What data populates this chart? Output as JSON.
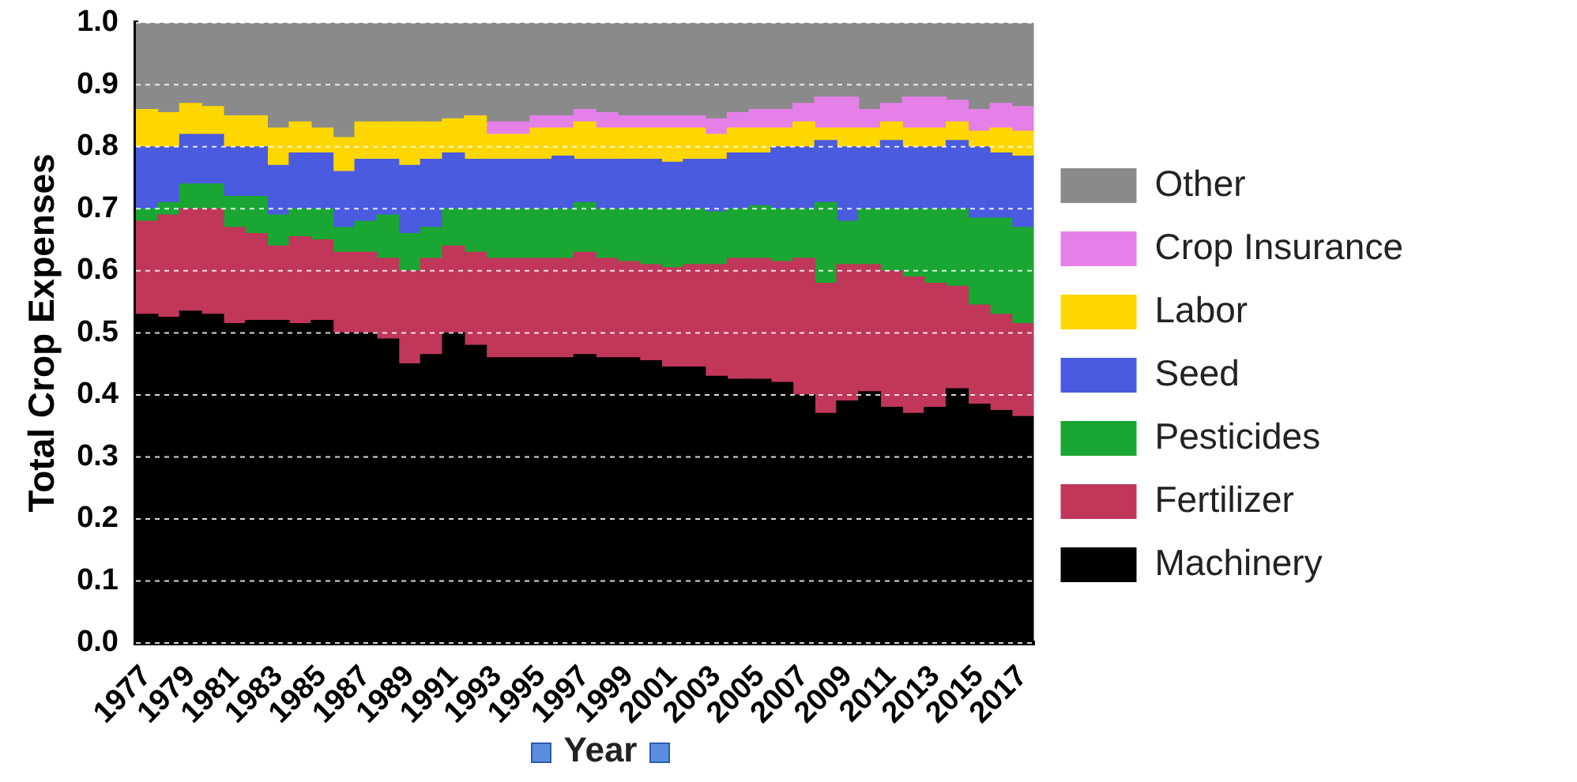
{
  "chart_data": {
    "type": "bar",
    "stacked": true,
    "ylabel": "Total Crop Expenses",
    "xlabel": "Year",
    "categories": [
      "1977",
      null,
      "1979",
      null,
      "1981",
      null,
      "1983",
      null,
      "1985",
      null,
      "1987",
      null,
      "1989",
      null,
      "1991",
      null,
      "1993",
      null,
      "1995",
      null,
      "1997",
      null,
      "1999",
      null,
      "2001",
      null,
      "2003",
      null,
      "2005",
      null,
      "2007",
      null,
      "2009",
      null,
      "2011",
      null,
      "2013",
      null,
      "2015",
      null,
      "2017"
    ],
    "ylim": [
      0,
      1
    ],
    "yticks": [
      {
        "value": 0,
        "label": "0.0"
      },
      {
        "value": 0.1,
        "label": "0.1"
      },
      {
        "value": 0.2,
        "label": "0.2"
      },
      {
        "value": 0.3,
        "label": "0.3"
      },
      {
        "value": 0.4,
        "label": "0.4"
      },
      {
        "value": 0.5,
        "label": "0.5"
      },
      {
        "value": 0.6,
        "label": "0.6"
      },
      {
        "value": 0.7,
        "label": "0.7"
      },
      {
        "value": 0.8,
        "label": "0.8"
      },
      {
        "value": 0.9,
        "label": "0.9"
      },
      {
        "value": 1,
        "label": "1.0"
      }
    ],
    "grid": "y",
    "legend": "right",
    "series": [
      {
        "name": "Machinery",
        "color": "#000000",
        "values": [
          0.53,
          0.525,
          0.535,
          0.53,
          0.515,
          0.52,
          0.52,
          0.515,
          0.52,
          0.5,
          0.5,
          0.49,
          0.45,
          0.465,
          0.5,
          0.48,
          0.46,
          0.46,
          0.46,
          0.46,
          0.465,
          0.46,
          0.46,
          0.455,
          0.445,
          0.445,
          0.43,
          0.425,
          0.425,
          0.42,
          0.4,
          0.37,
          0.39,
          0.405,
          0.38,
          0.37,
          0.38,
          0.41,
          0.385,
          0.375,
          0.365
        ]
      },
      {
        "name": "Fertilizer",
        "color": "#c0375a",
        "values": [
          0.15,
          0.165,
          0.165,
          0.17,
          0.155,
          0.14,
          0.12,
          0.14,
          0.13,
          0.13,
          0.13,
          0.13,
          0.15,
          0.155,
          0.14,
          0.15,
          0.16,
          0.16,
          0.16,
          0.16,
          0.165,
          0.16,
          0.155,
          0.155,
          0.16,
          0.165,
          0.18,
          0.195,
          0.195,
          0.195,
          0.22,
          0.21,
          0.22,
          0.205,
          0.22,
          0.22,
          0.2,
          0.165,
          0.16,
          0.155,
          0.15
        ]
      },
      {
        "name": "Pesticides",
        "color": "#1aa632",
        "values": [
          0.02,
          0.02,
          0.04,
          0.04,
          0.05,
          0.06,
          0.05,
          0.045,
          0.05,
          0.04,
          0.05,
          0.07,
          0.06,
          0.05,
          0.06,
          0.07,
          0.08,
          0.08,
          0.08,
          0.08,
          0.08,
          0.08,
          0.085,
          0.09,
          0.095,
          0.09,
          0.085,
          0.08,
          0.085,
          0.085,
          0.08,
          0.13,
          0.07,
          0.09,
          0.1,
          0.11,
          0.12,
          0.125,
          0.14,
          0.155,
          0.155
        ]
      },
      {
        "name": "Seed",
        "color": "#4a5be0",
        "values": [
          0.1,
          0.09,
          0.08,
          0.08,
          0.08,
          0.08,
          0.08,
          0.09,
          0.09,
          0.09,
          0.1,
          0.09,
          0.11,
          0.11,
          0.09,
          0.08,
          0.08,
          0.08,
          0.08,
          0.085,
          0.07,
          0.08,
          0.08,
          0.08,
          0.075,
          0.08,
          0.085,
          0.09,
          0.085,
          0.1,
          0.1,
          0.1,
          0.12,
          0.1,
          0.11,
          0.1,
          0.1,
          0.11,
          0.115,
          0.105,
          0.115
        ]
      },
      {
        "name": "Labor",
        "color": "#ffd700",
        "values": [
          0.06,
          0.055,
          0.05,
          0.045,
          0.05,
          0.05,
          0.06,
          0.05,
          0.04,
          0.055,
          0.06,
          0.06,
          0.07,
          0.06,
          0.055,
          0.07,
          0.04,
          0.04,
          0.05,
          0.045,
          0.06,
          0.05,
          0.05,
          0.05,
          0.055,
          0.05,
          0.04,
          0.04,
          0.04,
          0.03,
          0.04,
          0.02,
          0.03,
          0.03,
          0.03,
          0.03,
          0.03,
          0.03,
          0.025,
          0.04,
          0.04
        ]
      },
      {
        "name": "Crop Insurance",
        "color": "#e580e8",
        "values": [
          null,
          null,
          null,
          null,
          null,
          null,
          null,
          null,
          null,
          null,
          null,
          null,
          null,
          null,
          null,
          null,
          0.02,
          0.02,
          0.02,
          0.02,
          0.02,
          0.025,
          0.02,
          0.02,
          0.02,
          0.02,
          0.025,
          0.025,
          0.03,
          0.03,
          0.03,
          0.05,
          0.05,
          0.03,
          0.03,
          0.05,
          0.05,
          0.035,
          0.035,
          0.04,
          0.04
        ]
      },
      {
        "name": "Other",
        "color": "#8a8a8a",
        "values": [
          0.14,
          0.145,
          0.13,
          0.135,
          0.15,
          0.15,
          0.17,
          0.16,
          0.17,
          0.185,
          0.16,
          0.16,
          0.16,
          0.16,
          0.155,
          0.15,
          0.16,
          0.16,
          0.15,
          0.15,
          0.14,
          0.145,
          0.15,
          0.15,
          0.15,
          0.15,
          0.155,
          0.145,
          0.14,
          0.14,
          0.13,
          0.12,
          0.12,
          0.14,
          0.13,
          0.12,
          0.12,
          0.125,
          0.14,
          0.13,
          0.135
        ]
      }
    ]
  }
}
